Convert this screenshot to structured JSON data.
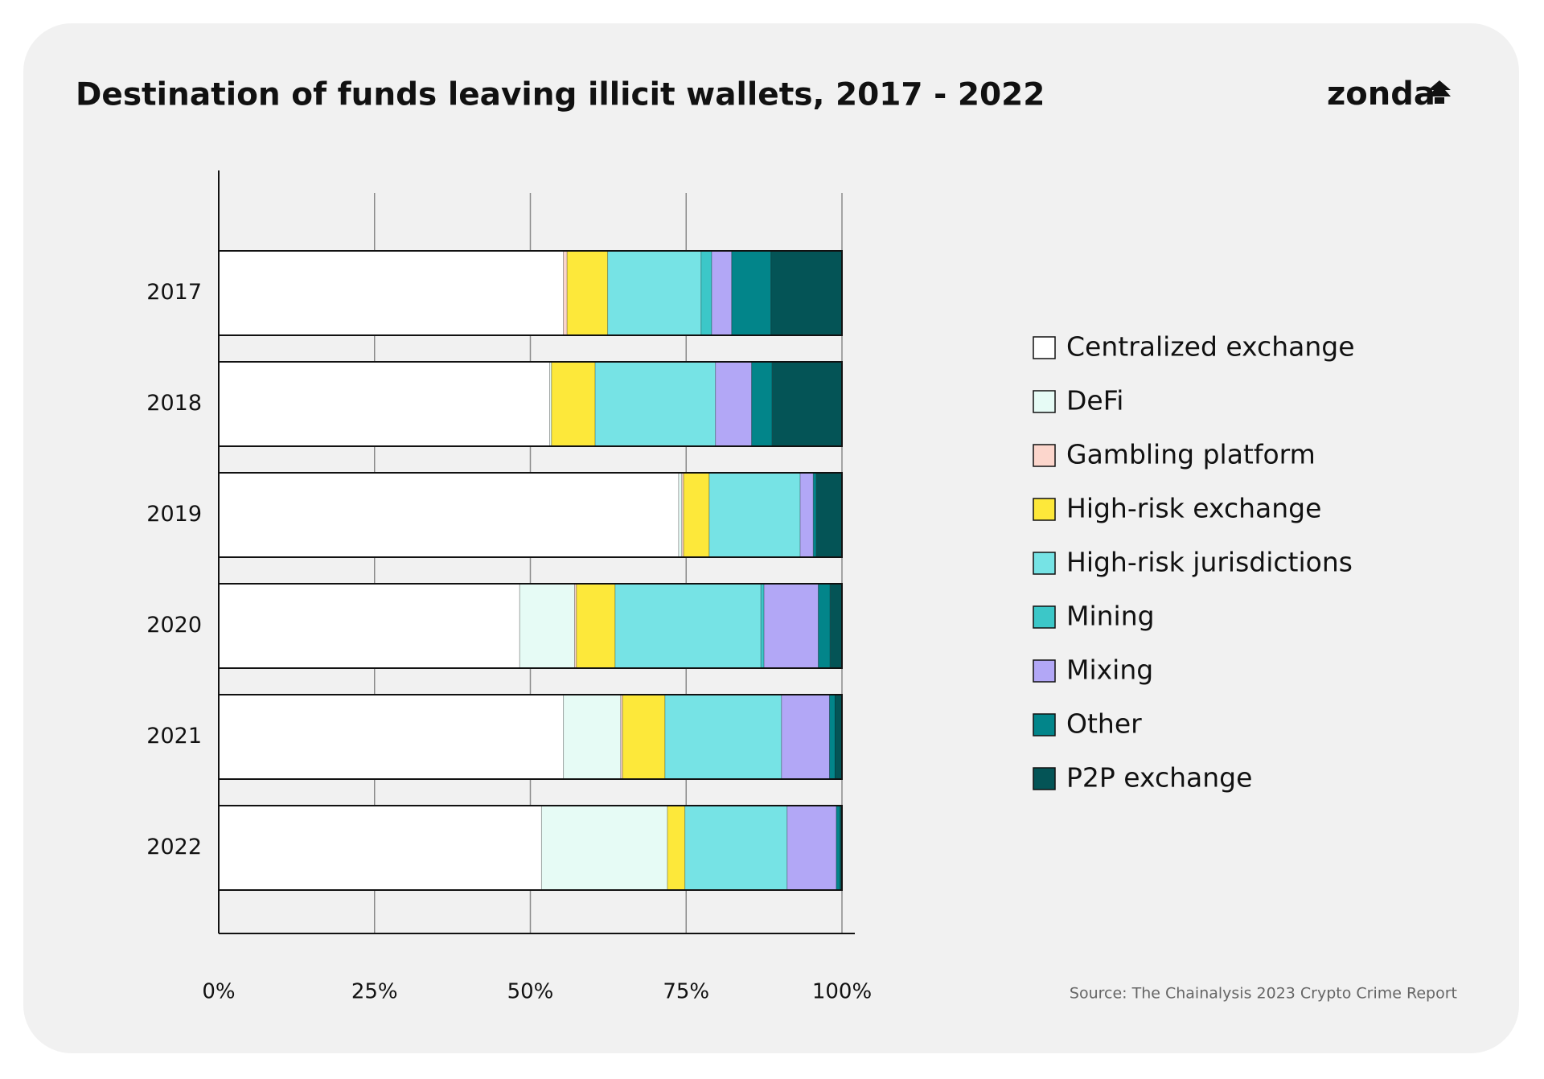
{
  "chart_data": {
    "type": "stacked-bar-horizontal",
    "title": "Destination of funds leaving illicit wallets, 2017 - 2022",
    "logo": "zonda",
    "source": "Source: The Chainalysis 2023 Crypto Crime Report",
    "categories": [
      "2017",
      "2018",
      "2019",
      "2020",
      "2021",
      "2022"
    ],
    "series": [
      {
        "name": "Centralized exchange",
        "color": "#ffffff",
        "values": [
          55.3,
          53.1,
          73.8,
          48.3,
          55.3,
          51.8
        ]
      },
      {
        "name": "DeFi",
        "color": "#e6fbf5",
        "values": [
          0,
          0.3,
          0.5,
          8.8,
          9.2,
          20.2
        ]
      },
      {
        "name": "Gambling platform",
        "color": "#fcd6cc",
        "values": [
          0.6,
          0,
          0.3,
          0.3,
          0.3,
          0
        ]
      },
      {
        "name": "High-risk exchange",
        "color": "#fde83a",
        "values": [
          6.5,
          7,
          4.1,
          6.2,
          6.8,
          2.8
        ]
      },
      {
        "name": "High-risk jurisdictions",
        "color": "#76e3e5",
        "values": [
          15,
          19.3,
          14.6,
          23.4,
          18.7,
          16.4
        ]
      },
      {
        "name": "Mining",
        "color": "#3cc7c8",
        "values": [
          1.7,
          0,
          0,
          0.5,
          0,
          0
        ]
      },
      {
        "name": "Mixing",
        "color": "#b2a7f6",
        "values": [
          3.2,
          5.8,
          2.1,
          8.7,
          7.7,
          7.9
        ]
      },
      {
        "name": "Other",
        "color": "#02858a",
        "values": [
          6.3,
          3.3,
          0.5,
          1.9,
          0.9,
          0.6
        ]
      },
      {
        "name": "P2P exchange",
        "color": "#045456",
        "values": [
          11.4,
          11.2,
          4.1,
          1.9,
          1.1,
          0.3
        ]
      }
    ],
    "xlim": [
      0,
      100
    ],
    "xticks": [
      {
        "value": 0,
        "label": "0%"
      },
      {
        "value": 25,
        "label": "25%"
      },
      {
        "value": 50,
        "label": "50%"
      },
      {
        "value": 75,
        "label": "75%"
      },
      {
        "value": 100,
        "label": "100%"
      }
    ],
    "grid": true,
    "legend": "right"
  }
}
